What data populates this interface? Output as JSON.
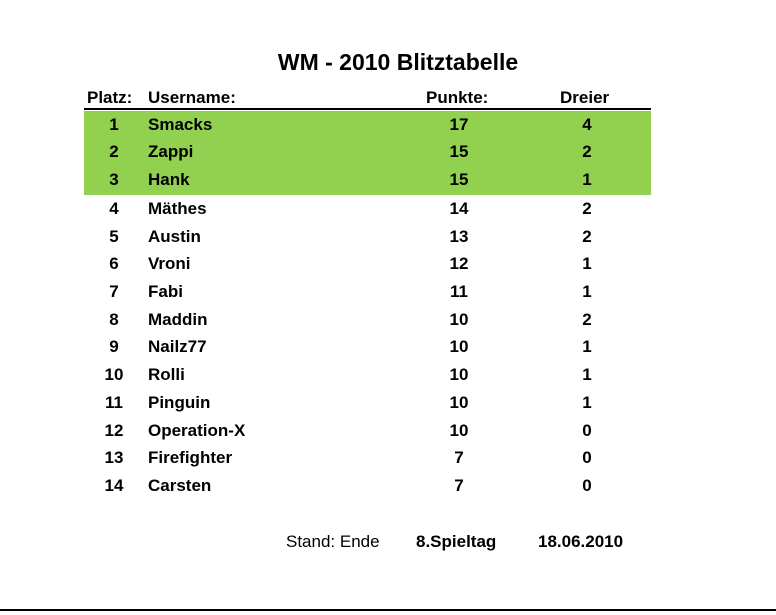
{
  "title": "WM - 2010 Blitztabelle",
  "headers": {
    "rank": "Platz:",
    "username": "Username:",
    "points": "Punkte:",
    "dreier": "Dreier"
  },
  "highlight_color": "#92d050",
  "rows": [
    {
      "rank": "1",
      "name": "Smacks",
      "points": "17",
      "dreier": "4"
    },
    {
      "rank": "2",
      "name": "Zappi",
      "points": "15",
      "dreier": "2"
    },
    {
      "rank": "3",
      "name": "Hank",
      "points": "15",
      "dreier": "1"
    },
    {
      "rank": "4",
      "name": "Mäthes",
      "points": "14",
      "dreier": "2"
    },
    {
      "rank": "5",
      "name": "Austin",
      "points": "13",
      "dreier": "2"
    },
    {
      "rank": "6",
      "name": "Vroni",
      "points": "12",
      "dreier": "1"
    },
    {
      "rank": "7",
      "name": "Fabi",
      "points": "11",
      "dreier": "1"
    },
    {
      "rank": "8",
      "name": "Maddin",
      "points": "10",
      "dreier": "2"
    },
    {
      "rank": "9",
      "name": "Nailz77",
      "points": "10",
      "dreier": "1"
    },
    {
      "rank": "10",
      "name": "Rolli",
      "points": "10",
      "dreier": "1"
    },
    {
      "rank": "11",
      "name": "Pinguin",
      "points": "10",
      "dreier": "1"
    },
    {
      "rank": "12",
      "name": "Operation-X",
      "points": "10",
      "dreier": "0"
    },
    {
      "rank": "13",
      "name": "Firefighter",
      "points": "7",
      "dreier": "0"
    },
    {
      "rank": "14",
      "name": "Carsten",
      "points": "7",
      "dreier": "0"
    }
  ],
  "footer": {
    "label": "Stand: Ende",
    "matchday": "8.Spieltag",
    "date": "18.06.2010"
  }
}
